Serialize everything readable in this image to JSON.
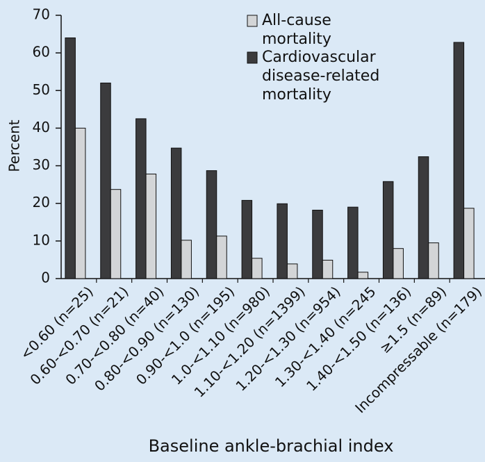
{
  "chart_data": {
    "type": "bar",
    "ylabel": "Percent",
    "xlabel": "Baseline ankle-brachial index",
    "categories": [
      "<0.60 (n=25)",
      "0.60-<0.70 (n=21)",
      "0.70-<0.80 (n=40)",
      "0.80-<0.90 (n=130)",
      "0.90-<1.0 (n=195)",
      "1.0-<1.10 (n=980)",
      "1.10-<1.20 (n=1399)",
      "1.20-<1.30 (n=954)",
      "1.30-<1.40 (n=245",
      "1.40-<1.50 (n=136)",
      "≥1.5 (n=89)",
      "Incompressable (n=179)"
    ],
    "series": [
      {
        "name": "All-cause mortality",
        "color": "#d3d5d7",
        "values": [
          40,
          23.7,
          27.8,
          10.2,
          11.3,
          5.4,
          3.9,
          4.9,
          1.7,
          8,
          9.5,
          18.7
        ]
      },
      {
        "name": "Cardiovascular disease-related mortality",
        "color": "#3b3b3d",
        "values": [
          64,
          52,
          42.5,
          34.7,
          28.7,
          20.8,
          19.9,
          18.2,
          19,
          25.8,
          32.4,
          62.8
        ]
      }
    ],
    "ylim": [
      0,
      70
    ],
    "yticks": [
      0,
      10,
      20,
      30,
      40,
      50,
      60,
      70
    ]
  }
}
